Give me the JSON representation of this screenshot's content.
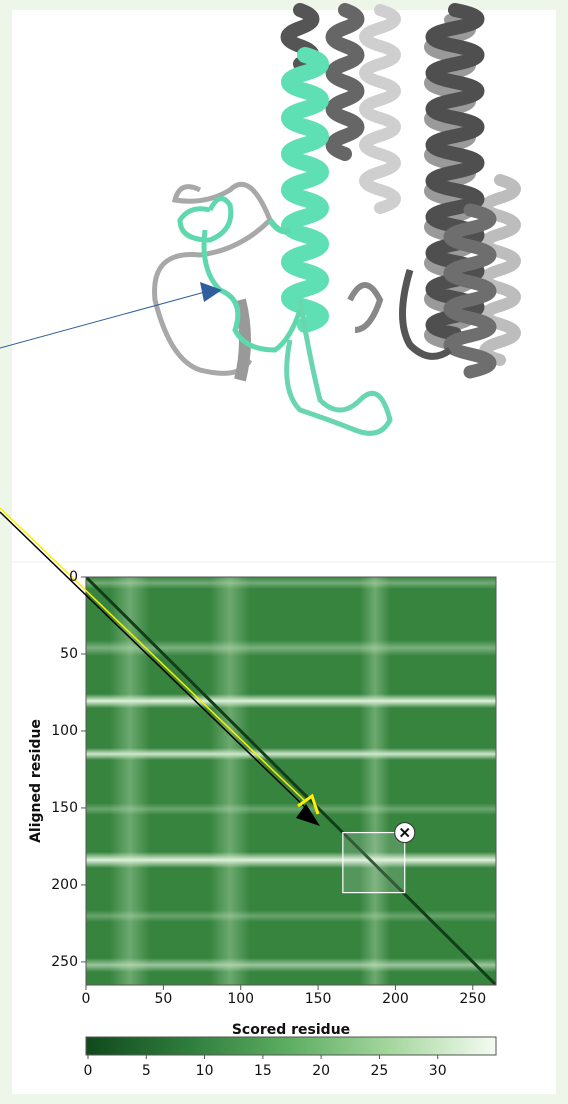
{
  "chart_data": {
    "type": "heatmap",
    "xlabel": "Scored residue",
    "ylabel": "Aligned residue",
    "xlim": [
      0,
      265
    ],
    "ylim": [
      0,
      265
    ],
    "xticks": [
      0,
      50,
      100,
      150,
      200,
      250
    ],
    "yticks": [
      0,
      50,
      100,
      150,
      200,
      250
    ],
    "selection": {
      "x": [
        166,
        206
      ],
      "y": [
        166,
        205
      ]
    },
    "colorbar": {
      "lim": [
        0,
        35
      ],
      "ticks": [
        0,
        5,
        10,
        15,
        20,
        25,
        30
      ],
      "colors": [
        "#0f4a1c",
        "#2f7d3c",
        "#5fae63",
        "#a7d8a0",
        "#f5fbf2"
      ]
    }
  }
}
